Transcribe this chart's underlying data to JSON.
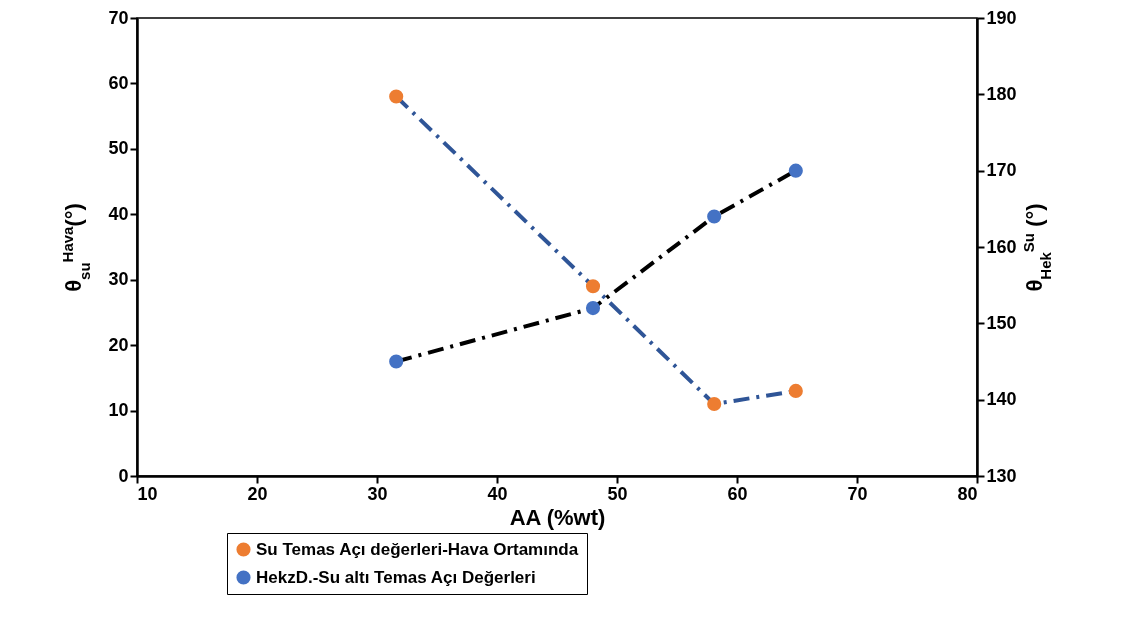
{
  "chart_data": {
    "type": "line",
    "xlabel": "AA (%wt)",
    "ylabel": "θ$_{su}$$^{Hava}$(°)",
    "y2label": "θ$_{Hek}$$^{Su}$ (°)",
    "xlim": [
      10,
      80
    ],
    "xticks": [
      10,
      20,
      30,
      40,
      50,
      60,
      70,
      80
    ],
    "ylim": [
      0,
      70
    ],
    "yticks": [
      0,
      10,
      20,
      30,
      40,
      50,
      60,
      70
    ],
    "y2lim": [
      130,
      190
    ],
    "y2ticks": [
      130,
      140,
      150,
      160,
      170,
      180,
      190
    ],
    "grid": false,
    "legend": "bottom",
    "series": [
      {
        "type": "line",
        "color": "#2f5597",
        "line_style": "dashed",
        "marker": "none",
        "x": [
          31.6,
          48,
          58.1,
          64.9
        ],
        "values": [
          58,
          29,
          11,
          13
        ]
      },
      {
        "type": "scatter",
        "name": "Su Temas Açı değerleri-Hava Ortamında",
        "color": "#ed7d31",
        "marker": "circle",
        "x": [
          31.6,
          48,
          58.1,
          64.9
        ],
        "values": [
          58,
          29,
          11,
          13
        ]
      },
      {
        "type": "line",
        "color": "#000000",
        "line_style": "dashed",
        "marker": "none",
        "axis": "y2",
        "x": [
          31.6,
          48,
          58.1,
          64.9
        ],
        "values": [
          145,
          152,
          164,
          170
        ]
      },
      {
        "type": "scatter",
        "name": "HekzD.-Su altı Temas Açı Değerleri",
        "color": "#4472c4",
        "marker": "circle",
        "axis": "y2",
        "x": [
          31.6,
          48,
          58.1,
          64.9
        ],
        "values": [
          145,
          152,
          164,
          170
        ]
      }
    ]
  }
}
